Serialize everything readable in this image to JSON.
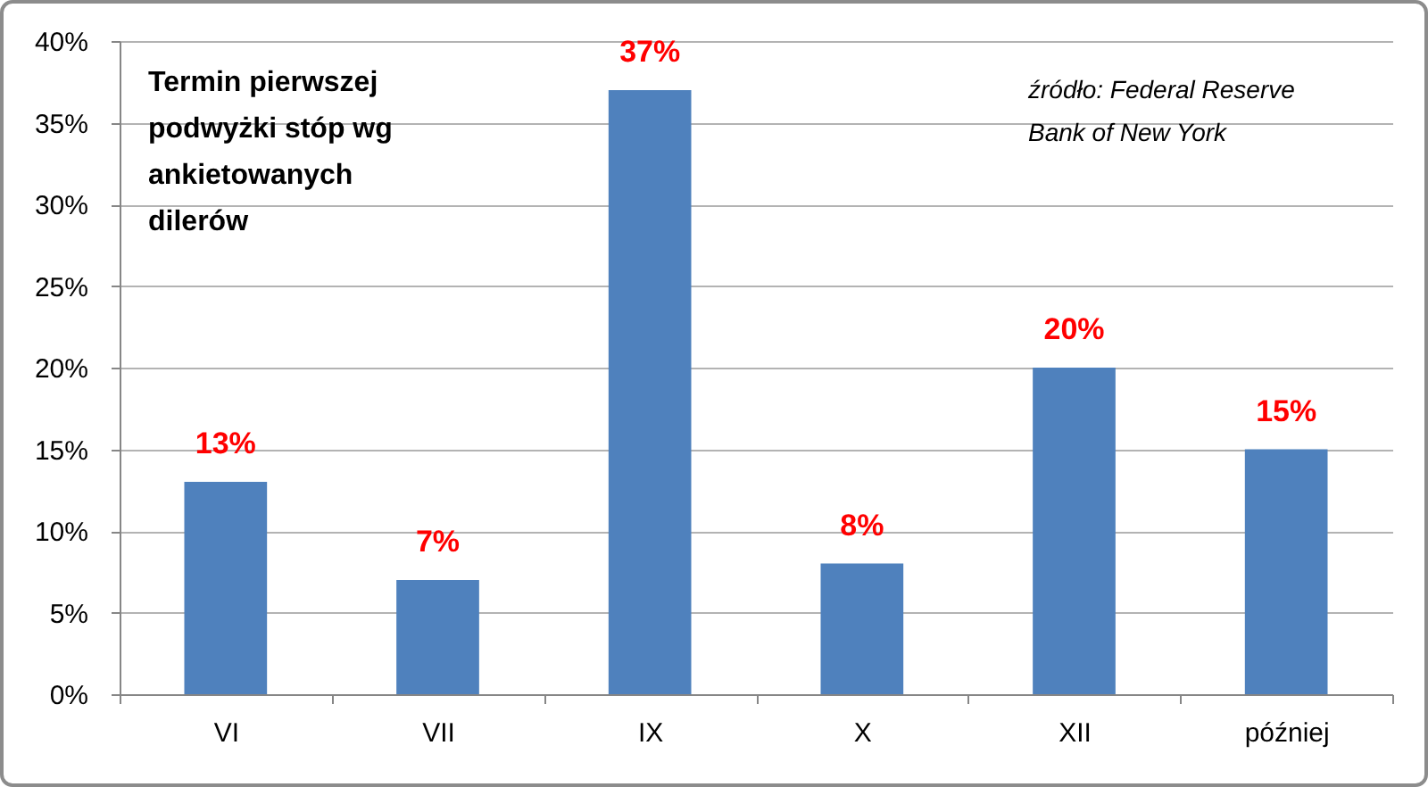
{
  "chart_data": {
    "type": "bar",
    "title": "Termin pierwszej podwyżki stóp wg ankietowanych dilerów",
    "annotations": [
      "źródło: Federal Reserve Bank of New York"
    ],
    "categories": [
      "VI",
      "VII",
      "IX",
      "X",
      "XII",
      "później"
    ],
    "values": [
      13,
      7,
      37,
      8,
      20,
      15
    ],
    "color": "#4f81bd",
    "value_labels": [
      "13%",
      "7%",
      "37%",
      "8%",
      "20%",
      "15%"
    ],
    "ylim": [
      0,
      40
    ],
    "yticks": [
      {
        "value": 0,
        "label": "0%"
      },
      {
        "value": 5,
        "label": "5%"
      },
      {
        "value": 10,
        "label": "10%"
      },
      {
        "value": 15,
        "label": "15%"
      },
      {
        "value": 20,
        "label": "20%"
      },
      {
        "value": 25,
        "label": "25%"
      },
      {
        "value": 30,
        "label": "30%"
      },
      {
        "value": 35,
        "label": "35%"
      },
      {
        "value": 40,
        "label": "40%"
      }
    ],
    "grid": "y"
  }
}
